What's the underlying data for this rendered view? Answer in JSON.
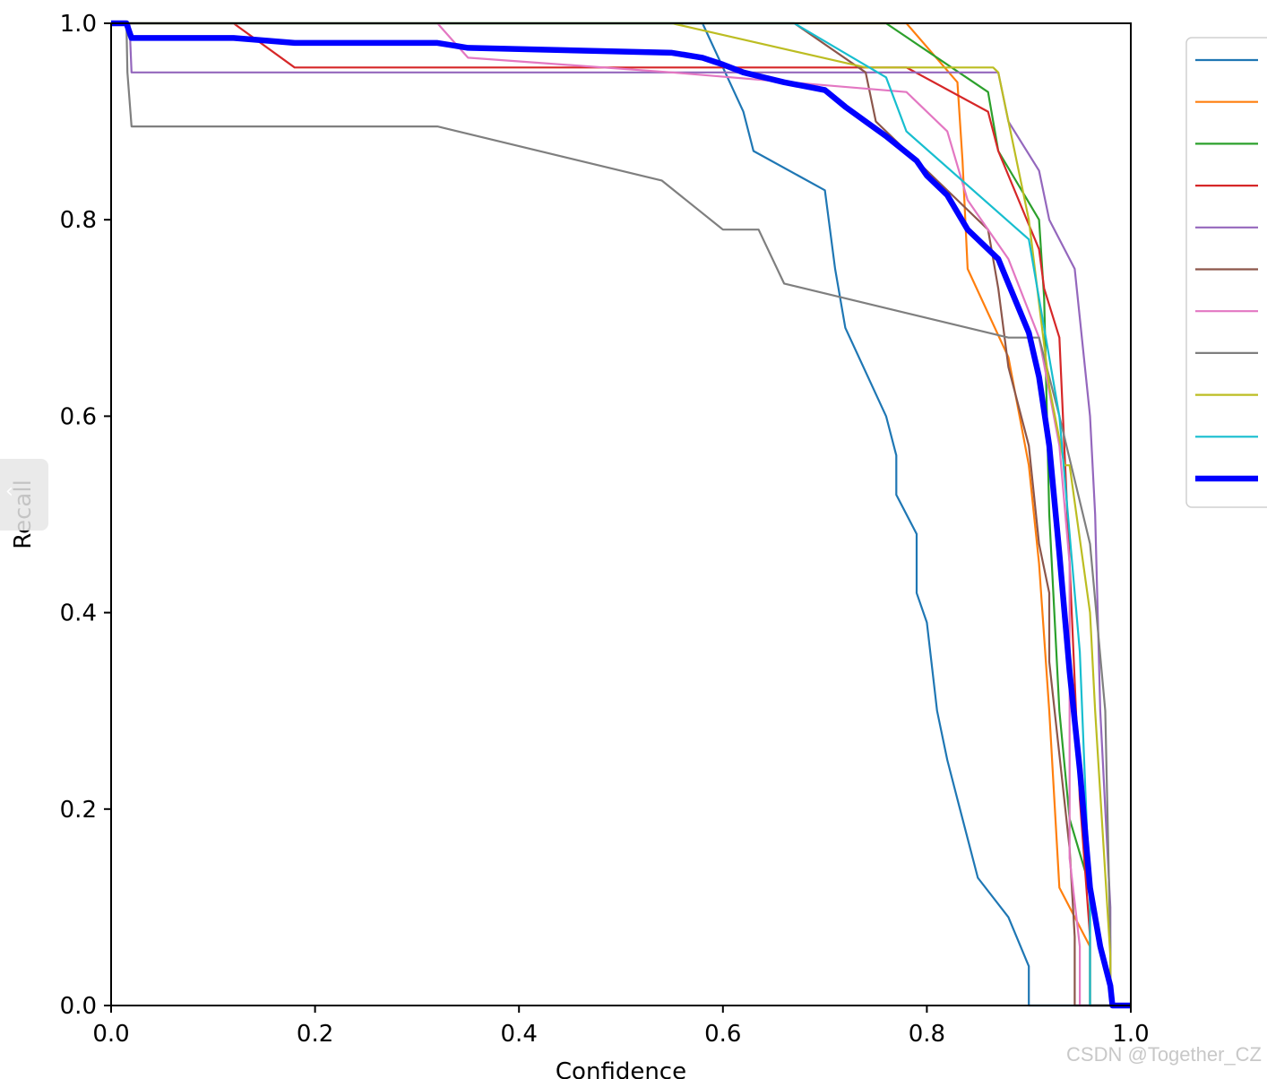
{
  "chart_data": {
    "type": "line",
    "xlabel": "Confidence",
    "ylabel": "Recall",
    "xlim": [
      0.0,
      1.0
    ],
    "ylim": [
      0.0,
      1.0
    ],
    "xticks": [
      "0.0",
      "0.2",
      "0.4",
      "0.6",
      "0.8",
      "1.0"
    ],
    "yticks": [
      "0.0",
      "0.2",
      "0.4",
      "0.6",
      "0.8",
      "1.0"
    ],
    "grid": false,
    "legend_position": "upper-right outside",
    "series": [
      {
        "color": "#1f77b4",
        "width": 2.2,
        "points": [
          [
            0,
            1
          ],
          [
            0.58,
            1
          ],
          [
            0.62,
            0.91
          ],
          [
            0.63,
            0.87
          ],
          [
            0.7,
            0.83
          ],
          [
            0.71,
            0.75
          ],
          [
            0.72,
            0.69
          ],
          [
            0.76,
            0.6
          ],
          [
            0.77,
            0.56
          ],
          [
            0.77,
            0.52
          ],
          [
            0.79,
            0.48
          ],
          [
            0.79,
            0.42
          ],
          [
            0.8,
            0.39
          ],
          [
            0.81,
            0.3
          ],
          [
            0.82,
            0.25
          ],
          [
            0.83,
            0.21
          ],
          [
            0.84,
            0.17
          ],
          [
            0.85,
            0.13
          ],
          [
            0.88,
            0.09
          ],
          [
            0.9,
            0.04
          ],
          [
            0.9,
            0
          ],
          [
            1,
            0
          ]
        ]
      },
      {
        "color": "#ff7f0e",
        "width": 2.2,
        "points": [
          [
            0,
            1
          ],
          [
            0.78,
            1
          ],
          [
            0.83,
            0.94
          ],
          [
            0.835,
            0.86
          ],
          [
            0.84,
            0.75
          ],
          [
            0.88,
            0.66
          ],
          [
            0.9,
            0.55
          ],
          [
            0.91,
            0.45
          ],
          [
            0.92,
            0.3
          ],
          [
            0.93,
            0.12
          ],
          [
            0.96,
            0.06
          ],
          [
            0.96,
            0
          ],
          [
            1,
            0
          ]
        ]
      },
      {
        "color": "#2ca02c",
        "width": 2.2,
        "points": [
          [
            0,
            1
          ],
          [
            0.76,
            1
          ],
          [
            0.86,
            0.93
          ],
          [
            0.87,
            0.87
          ],
          [
            0.91,
            0.8
          ],
          [
            0.915,
            0.72
          ],
          [
            0.92,
            0.5
          ],
          [
            0.93,
            0.3
          ],
          [
            0.94,
            0.19
          ],
          [
            0.96,
            0.12
          ],
          [
            0.96,
            0
          ],
          [
            1,
            0
          ]
        ]
      },
      {
        "color": "#d62728",
        "width": 2.2,
        "points": [
          [
            0,
            1
          ],
          [
            0.12,
            1
          ],
          [
            0.18,
            0.955
          ],
          [
            0.78,
            0.955
          ],
          [
            0.86,
            0.91
          ],
          [
            0.87,
            0.87
          ],
          [
            0.91,
            0.77
          ],
          [
            0.915,
            0.73
          ],
          [
            0.93,
            0.68
          ],
          [
            0.94,
            0.45
          ],
          [
            0.95,
            0.21
          ],
          [
            0.96,
            0.07
          ],
          [
            0.96,
            0
          ],
          [
            1,
            0
          ]
        ]
      },
      {
        "color": "#9467bd",
        "width": 2.2,
        "points": [
          [
            0,
            1
          ],
          [
            0.018,
            1
          ],
          [
            0.02,
            0.95
          ],
          [
            0.87,
            0.95
          ],
          [
            0.88,
            0.9
          ],
          [
            0.91,
            0.85
          ],
          [
            0.92,
            0.8
          ],
          [
            0.945,
            0.75
          ],
          [
            0.95,
            0.7
          ],
          [
            0.96,
            0.6
          ],
          [
            0.965,
            0.5
          ],
          [
            0.97,
            0.3
          ],
          [
            0.975,
            0.2
          ],
          [
            0.98,
            0.1
          ],
          [
            0.98,
            0
          ],
          [
            1,
            0
          ]
        ]
      },
      {
        "color": "#8c564b",
        "width": 2.2,
        "points": [
          [
            0,
            1
          ],
          [
            0.67,
            1
          ],
          [
            0.74,
            0.95
          ],
          [
            0.75,
            0.9
          ],
          [
            0.78,
            0.87
          ],
          [
            0.86,
            0.79
          ],
          [
            0.87,
            0.73
          ],
          [
            0.88,
            0.65
          ],
          [
            0.9,
            0.57
          ],
          [
            0.91,
            0.47
          ],
          [
            0.92,
            0.42
          ],
          [
            0.92,
            0.35
          ],
          [
            0.94,
            0.16
          ],
          [
            0.945,
            0.07
          ],
          [
            0.945,
            0
          ],
          [
            1,
            0
          ]
        ]
      },
      {
        "color": "#e377c2",
        "width": 2.2,
        "points": [
          [
            0,
            1
          ],
          [
            0.32,
            1
          ],
          [
            0.35,
            0.965
          ],
          [
            0.55,
            0.95
          ],
          [
            0.78,
            0.93
          ],
          [
            0.82,
            0.89
          ],
          [
            0.84,
            0.82
          ],
          [
            0.88,
            0.76
          ],
          [
            0.91,
            0.68
          ],
          [
            0.93,
            0.57
          ],
          [
            0.94,
            0.45
          ],
          [
            0.94,
            0.15
          ],
          [
            0.95,
            0.06
          ],
          [
            0.95,
            0
          ],
          [
            1,
            0
          ]
        ]
      },
      {
        "color": "#7f7f7f",
        "width": 2.2,
        "points": [
          [
            0,
            1
          ],
          [
            0.015,
            1
          ],
          [
            0.016,
            0.95
          ],
          [
            0.02,
            0.895
          ],
          [
            0.32,
            0.895
          ],
          [
            0.54,
            0.84
          ],
          [
            0.6,
            0.79
          ],
          [
            0.635,
            0.79
          ],
          [
            0.66,
            0.735
          ],
          [
            0.88,
            0.68
          ],
          [
            0.91,
            0.68
          ],
          [
            0.93,
            0.6
          ],
          [
            0.96,
            0.47
          ],
          [
            0.975,
            0.3
          ],
          [
            0.98,
            0.06
          ],
          [
            0.98,
            0
          ],
          [
            1,
            0
          ]
        ]
      },
      {
        "color": "#bcbd22",
        "width": 2.2,
        "points": [
          [
            0,
            1
          ],
          [
            0.55,
            1
          ],
          [
            0.74,
            0.955
          ],
          [
            0.865,
            0.955
          ],
          [
            0.87,
            0.95
          ],
          [
            0.9,
            0.8
          ],
          [
            0.92,
            0.63
          ],
          [
            0.935,
            0.55
          ],
          [
            0.94,
            0.55
          ],
          [
            0.96,
            0.4
          ],
          [
            0.965,
            0.3
          ],
          [
            0.98,
            0.05
          ],
          [
            0.98,
            0
          ],
          [
            1,
            0
          ]
        ]
      },
      {
        "color": "#17becf",
        "width": 2.2,
        "points": [
          [
            0,
            1
          ],
          [
            0.67,
            1
          ],
          [
            0.76,
            0.945
          ],
          [
            0.78,
            0.89
          ],
          [
            0.9,
            0.78
          ],
          [
            0.93,
            0.6
          ],
          [
            0.95,
            0.36
          ],
          [
            0.96,
            0.1
          ],
          [
            0.96,
            0
          ],
          [
            1,
            0
          ]
        ]
      },
      {
        "color": "#0000ff",
        "width": 6.5,
        "points": [
          [
            0,
            1
          ],
          [
            0.015,
            1
          ],
          [
            0.02,
            0.985
          ],
          [
            0.12,
            0.985
          ],
          [
            0.18,
            0.98
          ],
          [
            0.32,
            0.98
          ],
          [
            0.35,
            0.975
          ],
          [
            0.55,
            0.97
          ],
          [
            0.58,
            0.965
          ],
          [
            0.6,
            0.958
          ],
          [
            0.62,
            0.95
          ],
          [
            0.66,
            0.94
          ],
          [
            0.7,
            0.932
          ],
          [
            0.72,
            0.915
          ],
          [
            0.74,
            0.9
          ],
          [
            0.76,
            0.885
          ],
          [
            0.79,
            0.86
          ],
          [
            0.8,
            0.845
          ],
          [
            0.82,
            0.825
          ],
          [
            0.84,
            0.79
          ],
          [
            0.87,
            0.76
          ],
          [
            0.88,
            0.735
          ],
          [
            0.9,
            0.685
          ],
          [
            0.91,
            0.64
          ],
          [
            0.92,
            0.57
          ],
          [
            0.93,
            0.46
          ],
          [
            0.94,
            0.34
          ],
          [
            0.95,
            0.24
          ],
          [
            0.96,
            0.12
          ],
          [
            0.97,
            0.06
          ],
          [
            0.98,
            0.02
          ],
          [
            0.982,
            0
          ],
          [
            1,
            0
          ]
        ]
      }
    ]
  }
}
